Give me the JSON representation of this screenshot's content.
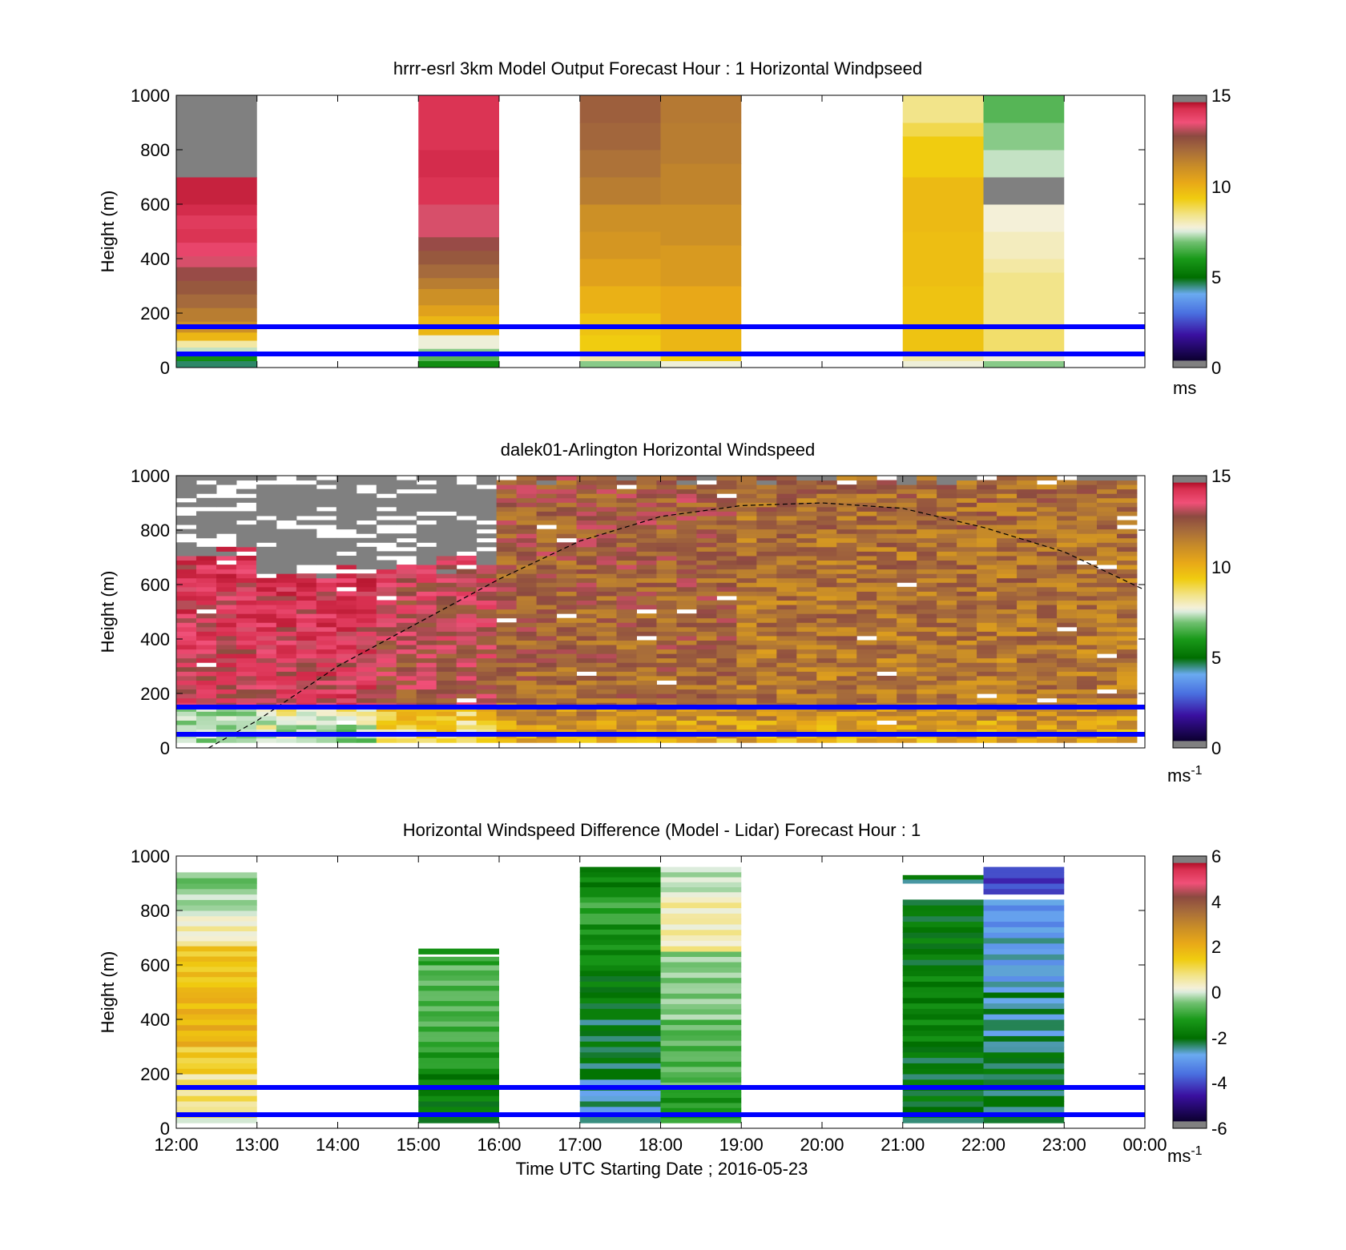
{
  "chart_data": [
    {
      "type": "heatmap",
      "title": "hrrr-esrl 3km Model Output   Forecast Hour : 1 Horizontal Windpseed",
      "ylabel": "Height (m)",
      "ylim": [
        0,
        1000
      ],
      "yticks": [
        "0",
        "200",
        "400",
        "600",
        "800",
        "1000"
      ],
      "xlim_hours": [
        12,
        24
      ],
      "colorbar": {
        "ticks": [
          "0",
          "5",
          "10",
          "15"
        ],
        "range": [
          0,
          15
        ],
        "unit": "ms"
      },
      "reference_lines_m": [
        50,
        150
      ],
      "columns": [
        {
          "hour": 12,
          "profile": [
            [
              0,
              25,
              4
            ],
            [
              25,
              45,
              5
            ],
            [
              45,
              60,
              6
            ],
            [
              60,
              75,
              7
            ],
            [
              75,
              100,
              8
            ],
            [
              100,
              130,
              9.5
            ],
            [
              130,
              170,
              10.5
            ],
            [
              170,
              220,
              11
            ],
            [
              220,
              270,
              11.5
            ],
            [
              270,
              320,
              12
            ],
            [
              320,
              370,
              12.5
            ],
            [
              370,
              410,
              13
            ],
            [
              410,
              460,
              13.5
            ],
            [
              460,
              510,
              14
            ],
            [
              510,
              560,
              13.8
            ],
            [
              560,
              600,
              14.2
            ],
            [
              600,
              700,
              14.5
            ],
            [
              700,
              1000,
              20
            ]
          ]
        },
        {
          "hour": 15,
          "profile": [
            [
              0,
              25,
              5
            ],
            [
              25,
              45,
              6
            ],
            [
              45,
              70,
              6.5
            ],
            [
              70,
              120,
              7.5
            ],
            [
              120,
              190,
              9.5
            ],
            [
              190,
              230,
              10
            ],
            [
              230,
              290,
              10.5
            ],
            [
              290,
              330,
              11
            ],
            [
              330,
              380,
              11.5
            ],
            [
              380,
              430,
              12
            ],
            [
              430,
              480,
              12.5
            ],
            [
              480,
              600,
              13
            ],
            [
              600,
              700,
              14
            ],
            [
              700,
              800,
              14.2
            ],
            [
              800,
              1000,
              14
            ]
          ]
        },
        {
          "hour": 17,
          "profile": [
            [
              0,
              25,
              6.5
            ],
            [
              25,
              50,
              8
            ],
            [
              50,
              120,
              9
            ],
            [
              120,
              200,
              9.2
            ],
            [
              200,
              300,
              9.6
            ],
            [
              300,
              400,
              10
            ],
            [
              400,
              500,
              10.3
            ],
            [
              500,
              600,
              10.5
            ],
            [
              600,
              700,
              11
            ],
            [
              700,
              800,
              11.3
            ],
            [
              800,
              900,
              11.6
            ],
            [
              900,
              1000,
              11.8
            ]
          ]
        },
        {
          "hour": 18,
          "profile": [
            [
              0,
              25,
              7.5
            ],
            [
              25,
              50,
              9
            ],
            [
              50,
              150,
              9.5
            ],
            [
              150,
              300,
              9.8
            ],
            [
              300,
              450,
              10.2
            ],
            [
              450,
              600,
              10.5
            ],
            [
              600,
              750,
              10.8
            ],
            [
              750,
              900,
              11
            ],
            [
              900,
              1000,
              11.1
            ]
          ]
        },
        {
          "hour": 21,
          "profile": [
            [
              0,
              25,
              7.5
            ],
            [
              25,
              50,
              8
            ],
            [
              50,
              150,
              9.2
            ],
            [
              150,
              300,
              9.2
            ],
            [
              300,
              500,
              9.3
            ],
            [
              500,
              700,
              9.4
            ],
            [
              700,
              850,
              9.0
            ],
            [
              850,
              900,
              8.6
            ],
            [
              900,
              1000,
              8.2
            ]
          ]
        },
        {
          "hour": 22,
          "profile": [
            [
              0,
              25,
              6.5
            ],
            [
              25,
              50,
              7.6
            ],
            [
              50,
              150,
              8.4
            ],
            [
              150,
              350,
              8.2
            ],
            [
              350,
              400,
              8.0
            ],
            [
              400,
              500,
              7.8
            ],
            [
              500,
              600,
              7.6
            ],
            [
              600,
              700,
              20
            ],
            [
              700,
              800,
              7.0
            ],
            [
              800,
              900,
              6.5
            ],
            [
              900,
              1000,
              6.0
            ]
          ]
        }
      ]
    },
    {
      "type": "heatmap",
      "title": "dalek01-Arlington  Horizontal Windspeed",
      "ylabel": "Height (m)",
      "ylim": [
        0,
        1000
      ],
      "yticks": [
        "0",
        "200",
        "400",
        "600",
        "800",
        "1000"
      ],
      "xlim_hours": [
        12,
        24
      ],
      "colorbar": {
        "ticks": [
          "0",
          "5",
          "10",
          "15"
        ],
        "range": [
          0,
          15
        ],
        "unit": "ms-1"
      },
      "reference_lines_m": [
        50,
        150
      ],
      "overlay_curve": {
        "style": "dashed",
        "points_hour_m": [
          [
            12.4,
            0
          ],
          [
            13,
            100
          ],
          [
            14,
            300
          ],
          [
            15,
            460
          ],
          [
            16,
            620
          ],
          [
            17,
            760
          ],
          [
            18,
            850
          ],
          [
            19,
            890
          ],
          [
            20,
            900
          ],
          [
            21,
            880
          ],
          [
            22,
            810
          ],
          [
            23,
            720
          ],
          [
            24,
            580
          ]
        ]
      },
      "profiles_by_period": [
        {
          "hours": [
            12,
            13
          ],
          "low_speed": 6,
          "mid_speed": 13,
          "top_speed": 14,
          "missing_above_m": 700
        },
        {
          "hours": [
            13,
            14.5
          ],
          "low_speed": 6.5,
          "mid_speed": 13.2,
          "top_speed": 14,
          "missing_above_m": 640
        },
        {
          "hours": [
            14.5,
            16
          ],
          "low_speed": 8,
          "mid_speed": 12,
          "top_speed": 13.5,
          "missing_above_m": 680
        },
        {
          "hours": [
            16,
            19
          ],
          "low_speed": 9.5,
          "mid_speed": 11.5,
          "top_speed": 12,
          "missing_above_m": 1000
        },
        {
          "hours": [
            19,
            24
          ],
          "low_speed": 9.5,
          "mid_speed": 11,
          "top_speed": 11.5,
          "missing_above_m": 1000
        }
      ]
    },
    {
      "type": "heatmap",
      "title": "Horizontal Windspeed Difference (Model - Lidar) Forecast Hour : 1",
      "xlabel": "Time UTC  Starting Date ; 2016-05-23",
      "ylabel": "Height (m)",
      "ylim": [
        0,
        1000
      ],
      "yticks": [
        "0",
        "200",
        "400",
        "600",
        "800",
        "1000"
      ],
      "xticks": [
        "12:00",
        "13:00",
        "14:00",
        "15:00",
        "16:00",
        "17:00",
        "18:00",
        "19:00",
        "20:00",
        "21:00",
        "22:00",
        "23:00",
        "00:00"
      ],
      "xlim_hours": [
        12,
        24
      ],
      "colorbar": {
        "ticks": [
          "-6",
          "-4",
          "-2",
          "0",
          "2",
          "4",
          "6"
        ],
        "range": [
          -6,
          6
        ],
        "unit": "ms-1"
      },
      "reference_lines_m": [
        50,
        150
      ],
      "columns": [
        {
          "hour": 12,
          "profile": [
            [
              20,
              40,
              -0.6
            ],
            [
              40,
              200,
              0.6
            ],
            [
              200,
              300,
              1.1
            ],
            [
              300,
              500,
              1.6
            ],
            [
              500,
              670,
              1.3
            ],
            [
              670,
              780,
              0.2
            ],
            [
              780,
              860,
              -0.6
            ],
            [
              860,
              940,
              -1.0
            ]
          ]
        },
        {
          "hour": 15,
          "profile": [
            [
              20,
              200,
              -2.3
            ],
            [
              200,
              300,
              -1.7
            ],
            [
              300,
              450,
              -1.3
            ],
            [
              450,
              600,
              -1.2
            ],
            [
              600,
              630,
              -1.5
            ],
            [
              640,
              660,
              -1.6
            ]
          ]
        },
        {
          "hour": 17,
          "profile": [
            [
              20,
              180,
              -3.0
            ],
            [
              180,
              400,
              -2.6
            ],
            [
              400,
              600,
              -2.4
            ],
            [
              600,
              750,
              -2.0
            ],
            [
              750,
              850,
              -1.5
            ],
            [
              850,
              960,
              -2.2
            ]
          ]
        },
        {
          "hour": 18,
          "profile": [
            [
              20,
              150,
              -1.8
            ],
            [
              150,
              400,
              -1.2
            ],
            [
              400,
              650,
              -0.8
            ],
            [
              650,
              850,
              0.3
            ],
            [
              850,
              960,
              -0.4
            ]
          ]
        },
        {
          "hour": 21,
          "profile": [
            [
              20,
              300,
              -2.5
            ],
            [
              300,
              600,
              -2.2
            ],
            [
              600,
              840,
              -2.4
            ],
            [
              900,
              930,
              -2.6
            ]
          ]
        },
        {
          "hour": 22,
          "profile": [
            [
              20,
              300,
              -2.6
            ],
            [
              300,
              500,
              -2.9
            ],
            [
              500,
              700,
              -3.2
            ],
            [
              700,
              840,
              -3.4
            ],
            [
              860,
              960,
              -4.5
            ]
          ]
        }
      ]
    }
  ]
}
